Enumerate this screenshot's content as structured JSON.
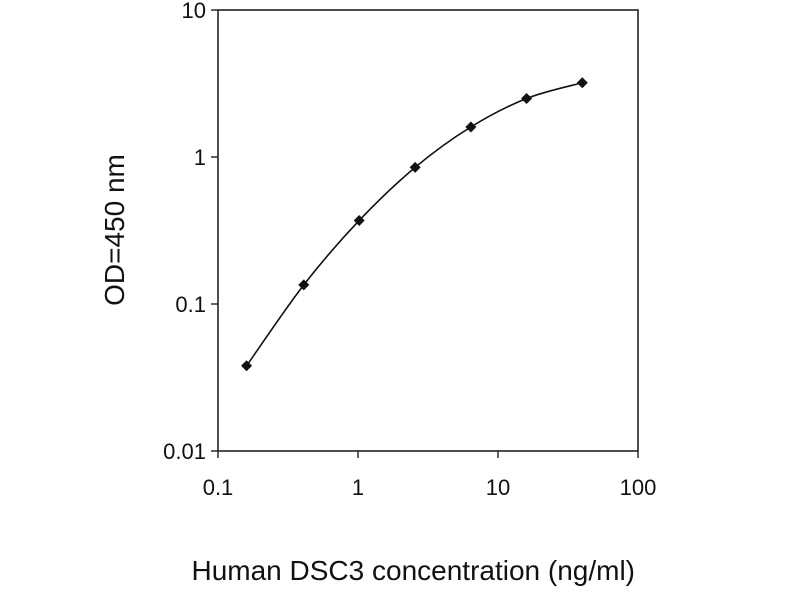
{
  "chart_data": {
    "type": "line",
    "title": "",
    "xlabel": "Human DSC3 concentration (ng/ml)",
    "ylabel": "OD=450 nm",
    "xscale": "log",
    "yscale": "log",
    "xlim": [
      0.1,
      100
    ],
    "ylim": [
      0.01,
      10
    ],
    "x_ticks": [
      "0.1",
      "1",
      "10",
      "100"
    ],
    "y_ticks": [
      "0.01",
      "0.1",
      "1",
      "10"
    ],
    "grid": false,
    "legend": "none",
    "series": [
      {
        "x": [
          0.16,
          0.41,
          1.02,
          2.56,
          6.4,
          16,
          40
        ],
        "y": [
          0.038,
          0.135,
          0.37,
          0.85,
          1.6,
          2.5,
          3.2
        ]
      }
    ],
    "colors": {
      "line": "#111111",
      "marker": "#111111",
      "frame": "#222222"
    }
  }
}
